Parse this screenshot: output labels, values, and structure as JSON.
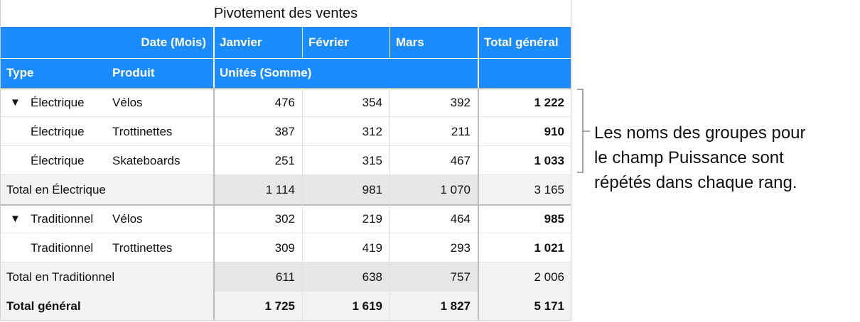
{
  "title": "Pivotement des ventes",
  "header": {
    "row1": [
      "Date  (Mois)",
      "Janvier",
      "Février",
      "Mars",
      "Total général"
    ],
    "row2": [
      "Type",
      "Produit",
      "Unités (Somme)"
    ]
  },
  "groups": [
    {
      "rows": [
        [
          "Électrique",
          "Vélos",
          "476",
          "354",
          "392",
          "1 222"
        ],
        [
          "Électrique",
          "Trottinettes",
          "387",
          "312",
          "211",
          "910"
        ],
        [
          "Électrique",
          "Skateboards",
          "251",
          "315",
          "467",
          "1 033"
        ]
      ],
      "total": [
        "Total en Électrique",
        "1 114",
        "981",
        "1 070",
        "3 165"
      ]
    },
    {
      "rows": [
        [
          "Traditionnel",
          "Vélos",
          "302",
          "219",
          "464",
          "985"
        ],
        [
          "Traditionnel",
          "Trottinettes",
          "309",
          "419",
          "293",
          "1 021"
        ]
      ],
      "total": [
        "Total en Traditionnel",
        "611",
        "638",
        "757",
        "2 006"
      ]
    }
  ],
  "grand_total": [
    "Total général",
    "1 725",
    "1 619",
    "1 827",
    "5 171"
  ],
  "annotation": [
    "Les noms des groupes pour",
    "le champ Puissance sont",
    "répétés dans chaque rang."
  ]
}
